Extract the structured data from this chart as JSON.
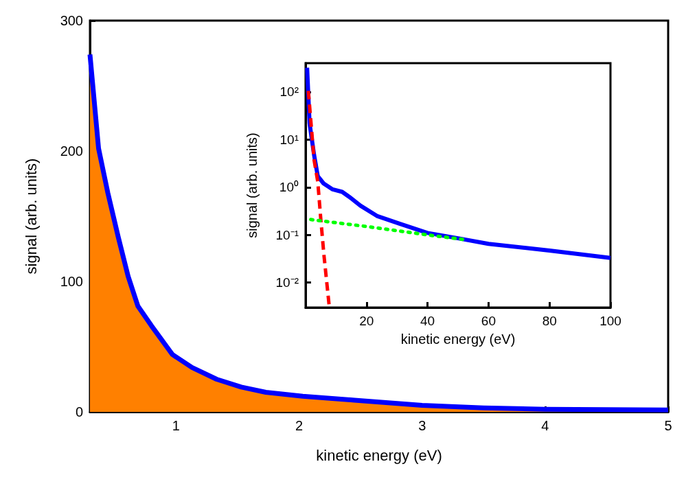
{
  "chart_data": [
    {
      "type": "area",
      "xlabel": "kinetic energy (eV)",
      "ylabel": "signal (arb. units)",
      "xlim": [
        0.3,
        5
      ],
      "xticks": [
        1,
        2,
        3,
        4,
        5
      ],
      "ylim": [
        0,
        300
      ],
      "yticks": [
        0,
        100,
        200,
        300
      ],
      "grid": false,
      "marker": "none",
      "x": [
        0.3,
        0.37,
        0.445,
        0.53,
        0.61,
        0.69,
        0.8,
        0.97,
        1.13,
        1.33,
        1.53,
        1.73,
        2.03,
        2.45,
        3,
        3.5,
        4,
        5
      ],
      "series": [
        {
          "color": "#ff8000",
          "values": [
            274,
            202,
            168,
            134,
            104,
            81,
            66,
            44,
            34,
            25,
            19,
            15,
            12,
            9,
            5,
            3,
            2,
            1.5
          ]
        },
        {
          "type": "line",
          "color": "#0000ff",
          "line_style": "solid",
          "values": [
            274,
            202,
            168,
            134,
            104,
            81,
            66,
            44,
            34,
            25,
            19,
            15,
            12,
            9,
            5,
            3,
            2,
            1.5
          ]
        }
      ]
    },
    {
      "type": "line",
      "xlabel": "kinetic energy (eV)",
      "ylabel": "signal (arb. units)",
      "xlim": [
        0,
        100
      ],
      "xticks": [
        20,
        40,
        60,
        80,
        100
      ],
      "ylim": [
        0.003,
        400
      ],
      "log": "y",
      "yticks": [
        {
          "value": 0.01,
          "label": "10⁻²"
        },
        {
          "value": 0.1,
          "label": "10⁻¹"
        },
        {
          "value": 1,
          "label": "10⁰"
        },
        {
          "value": 10,
          "label": "10¹"
        },
        {
          "value": 100,
          "label": "10²"
        }
      ],
      "grid": false,
      "marker": "none",
      "series": [
        {
          "color": "#ff0000",
          "line_style": "dashed",
          "x": [
            0.9,
            2.8,
            4,
            5,
            6,
            7,
            7.8
          ],
          "values": [
            105,
            3.7,
            1.3,
            0.21,
            0.039,
            0.0093,
            0.003
          ]
        },
        {
          "color": "#00ff00",
          "line_style": "dotted",
          "x": [
            1.7,
            20,
            40,
            52
          ],
          "values": [
            0.21,
            0.15,
            0.1,
            0.08
          ]
        },
        {
          "color": "#0000ff",
          "line_style": "solid",
          "x": [
            0.5,
            1.3,
            2.8,
            4,
            5.9,
            8.9,
            12,
            14.3,
            18,
            23.4,
            31,
            40,
            50,
            60,
            80,
            100
          ],
          "values": [
            320,
            22,
            4.7,
            1.7,
            1.2,
            0.9,
            0.8,
            0.63,
            0.41,
            0.25,
            0.17,
            0.11,
            0.085,
            0.065,
            0.047,
            0.033
          ]
        }
      ]
    }
  ]
}
